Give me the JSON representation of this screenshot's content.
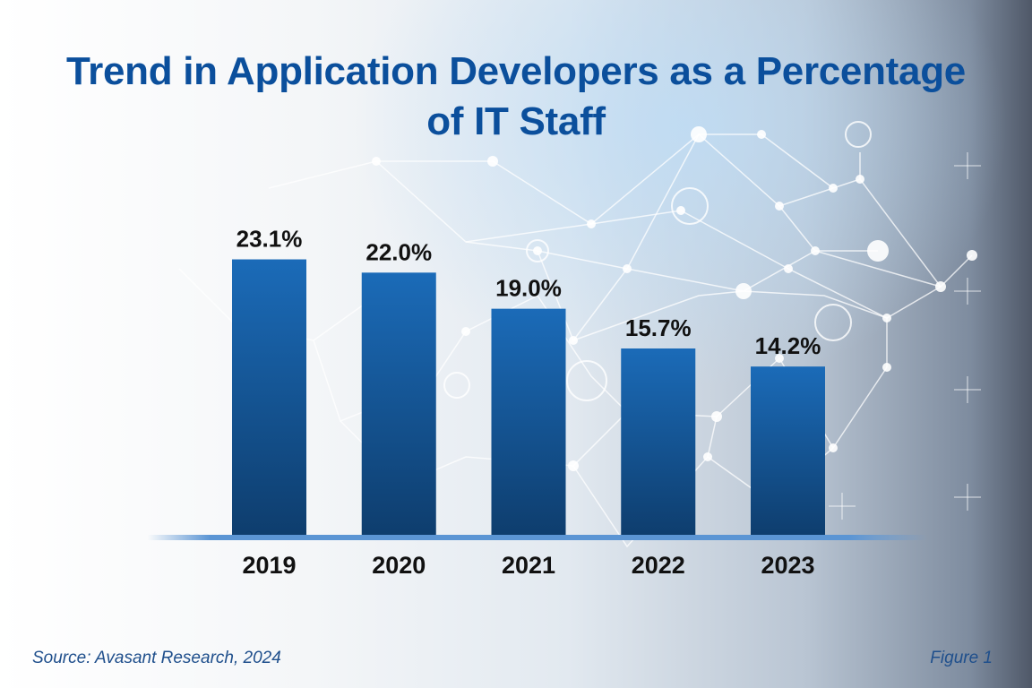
{
  "header": {
    "title_line1": "Trend in Application Developers as a Percentage",
    "title_line2": "of IT Staff"
  },
  "footer": {
    "source": "Source: Avasant Research, 2024",
    "figure": "Figure 1"
  },
  "colors": {
    "title": "#0b4f9c",
    "bar_top": "#1b6bb8",
    "bar_bottom": "#0e3d6d",
    "baseline": "#5b95d4",
    "label": "#111111",
    "footer_text": "#1f4f8c"
  },
  "chart_data": {
    "type": "bar",
    "title": "Trend in Application Developers as a Percentage of IT Staff",
    "categories": [
      "2019",
      "2020",
      "2021",
      "2022",
      "2023"
    ],
    "values": [
      23.1,
      22.0,
      19.0,
      15.7,
      14.2
    ],
    "data_labels": [
      "23.1%",
      "22.0%",
      "19.0%",
      "15.7%",
      "14.2%"
    ],
    "xlabel": "",
    "ylabel": "",
    "ylim": [
      0,
      25
    ],
    "grid": false,
    "legend": "none",
    "unit": "%"
  }
}
